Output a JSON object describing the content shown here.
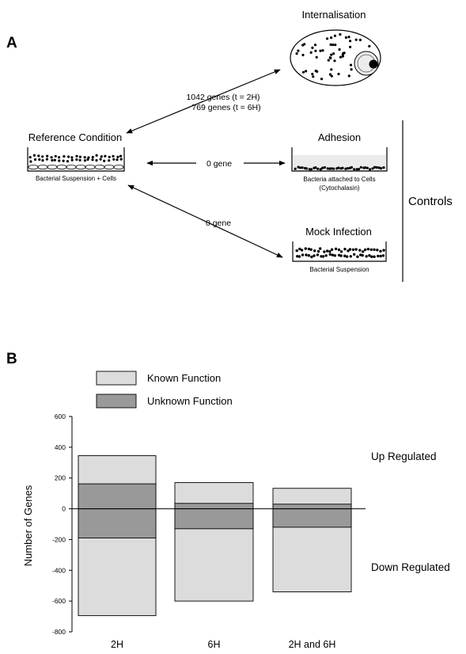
{
  "panel_a": {
    "label": "A",
    "internalisation_title": "Internalisation",
    "genes_2h": "1042 genes (t = 2H)",
    "genes_6h": "769 genes (t = 6H)",
    "reference_title": "Reference Condition",
    "reference_caption": "Bacterial Suspension + Cells",
    "adhesion_title": "Adhesion",
    "adhesion_edge": "0 gene",
    "adhesion_caption_1": "Bacteria attached to Cells",
    "adhesion_caption_2": "(Cytochalasin)",
    "mock_title": "Mock Infection",
    "mock_edge": "0 gene",
    "mock_caption": "Bacterial Suspension",
    "controls_label": "Controls"
  },
  "panel_b": {
    "label": "B",
    "up_label": "Up Regulated",
    "down_label": "Down Regulated"
  },
  "chart_data": {
    "type": "bar",
    "categories": [
      "2H",
      "6H",
      "2H and 6H"
    ],
    "series": [
      {
        "name": "Known Function",
        "color": "#dcdcdc",
        "up": [
          345,
          170,
          133
        ],
        "down": [
          -695,
          -600,
          -540
        ]
      },
      {
        "name": "Unknown Function",
        "color": "#999999",
        "up": [
          162,
          35,
          30
        ],
        "down": [
          -190,
          -130,
          -120
        ]
      }
    ],
    "ylabel": "Number of Genes",
    "ylim": [
      -800,
      600
    ],
    "yticks": [
      -800,
      -600,
      -400,
      -200,
      0,
      200,
      400,
      600
    ],
    "legend": "top-left",
    "grid": false
  }
}
